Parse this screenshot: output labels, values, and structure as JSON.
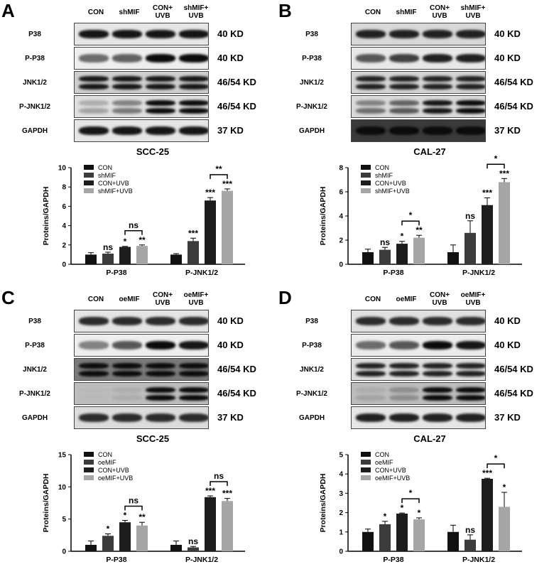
{
  "panels": [
    {
      "label": "A",
      "lanes": [
        "CON",
        "shMIF",
        "CON+\nUVB",
        "shMIF+\nUVB"
      ],
      "blots": [
        {
          "name": "P38",
          "kd": "40 KD",
          "bg": "#e6e6e6",
          "bands": [
            [
              0.9
            ],
            [
              0.9
            ],
            [
              0.9
            ],
            [
              0.9
            ]
          ]
        },
        {
          "name": "P-P38",
          "kd": "40 KD",
          "bg": "#eeeeee",
          "bands": [
            [
              0.5
            ],
            [
              0.55
            ],
            [
              0.95
            ],
            [
              0.95
            ]
          ]
        },
        {
          "name": "JNK1/2",
          "kd": "46/54 KD",
          "bg": "#cfcfcf",
          "bands": [
            [
              0.9,
              0.9
            ],
            [
              0.9,
              0.9
            ],
            [
              0.9,
              0.9
            ],
            [
              0.9,
              0.9
            ]
          ]
        },
        {
          "name": "P-JNK1/2",
          "kd": "46/54 KD",
          "bg": "#e0e0e0",
          "bands": [
            [
              0.2,
              0.25
            ],
            [
              0.4,
              0.45
            ],
            [
              0.95,
              0.95
            ],
            [
              0.95,
              0.95
            ]
          ]
        },
        {
          "name": "GAPDH",
          "kd": "37 KD",
          "bg": "#e6e6e6",
          "bands": [
            [
              0.9
            ],
            [
              0.9
            ],
            [
              0.9
            ],
            [
              0.9
            ]
          ]
        }
      ]
    },
    {
      "label": "B",
      "lanes": [
        "CON",
        "shMIF",
        "CON+\nUVB",
        "shMIF+\nUVB"
      ],
      "blots": [
        {
          "name": "P38",
          "kd": "40 KD",
          "bg": "#d8d8d8",
          "bands": [
            [
              0.85
            ],
            [
              0.85
            ],
            [
              0.85
            ],
            [
              0.85
            ]
          ]
        },
        {
          "name": "P-P38",
          "kd": "40 KD",
          "bg": "#e8e8e8",
          "bands": [
            [
              0.6
            ],
            [
              0.7
            ],
            [
              0.85
            ],
            [
              0.85
            ]
          ]
        },
        {
          "name": "JNK1/2",
          "kd": "46/54 KD",
          "bg": "#d4d4d4",
          "bands": [
            [
              0.85,
              0.85
            ],
            [
              0.85,
              0.85
            ],
            [
              0.85,
              0.85
            ],
            [
              0.85,
              0.85
            ]
          ]
        },
        {
          "name": "P-JNK1/2",
          "kd": "46/54 KD",
          "bg": "#dadada",
          "bands": [
            [
              0.4,
              0.5
            ],
            [
              0.55,
              0.6
            ],
            [
              0.9,
              0.9
            ],
            [
              0.95,
              0.95
            ]
          ]
        },
        {
          "name": "GAPDH",
          "kd": "37 KD",
          "bg": "#3a3a3a",
          "bands": [
            [
              0.95
            ],
            [
              0.95
            ],
            [
              0.95
            ],
            [
              0.95
            ]
          ]
        }
      ]
    },
    {
      "label": "C",
      "lanes": [
        "CON",
        "oeMIF",
        "CON+\nUVB",
        "oeMIF+\nUVB"
      ],
      "blots": [
        {
          "name": "P38",
          "kd": "40 KD",
          "bg": "#e4e4e4",
          "bands": [
            [
              0.8
            ],
            [
              0.8
            ],
            [
              0.8
            ],
            [
              0.8
            ]
          ]
        },
        {
          "name": "P-P38",
          "kd": "40 KD",
          "bg": "#eeeeee",
          "bands": [
            [
              0.4
            ],
            [
              0.6
            ],
            [
              0.95
            ],
            [
              0.9
            ]
          ]
        },
        {
          "name": "JNK1/2",
          "kd": "46/54 KD",
          "bg": "#7a7a7a",
          "bands": [
            [
              0.95,
              0.95
            ],
            [
              0.95,
              0.95
            ],
            [
              0.95,
              0.95
            ],
            [
              0.95,
              0.95
            ]
          ]
        },
        {
          "name": "P-JNK1/2",
          "kd": "46/54 KD",
          "bg": "#bdbdbd",
          "bands": [
            [
              0.15,
              0.15
            ],
            [
              0.2,
              0.2
            ],
            [
              0.95,
              0.95
            ],
            [
              0.95,
              0.95
            ]
          ]
        },
        {
          "name": "GAPDH",
          "kd": "37 KD",
          "bg": "#dcdcdc",
          "bands": [
            [
              0.8
            ],
            [
              0.8
            ],
            [
              0.8
            ],
            [
              0.8
            ]
          ]
        }
      ]
    },
    {
      "label": "D",
      "lanes": [
        "CON",
        "oeMIF",
        "CON+\nUVB",
        "oeMIF+\nUVB"
      ],
      "blots": [
        {
          "name": "P38",
          "kd": "40 KD",
          "bg": "#e0e0e0",
          "bands": [
            [
              0.8
            ],
            [
              0.8
            ],
            [
              0.8
            ],
            [
              0.8
            ]
          ]
        },
        {
          "name": "P-P38",
          "kd": "40 KD",
          "bg": "#ececec",
          "bands": [
            [
              0.5
            ],
            [
              0.6
            ],
            [
              0.95
            ],
            [
              0.9
            ]
          ]
        },
        {
          "name": "JNK1/2",
          "kd": "46/54 KD",
          "bg": "#dedede",
          "bands": [
            [
              0.85,
              0.85
            ],
            [
              0.85,
              0.85
            ],
            [
              0.85,
              0.85
            ],
            [
              0.85,
              0.85
            ]
          ]
        },
        {
          "name": "P-JNK1/2",
          "kd": "46/54 KD",
          "bg": "#bcbcbc",
          "bands": [
            [
              0.2,
              0.25
            ],
            [
              0.35,
              0.35
            ],
            [
              0.95,
              0.95
            ],
            [
              0.95,
              0.95
            ]
          ]
        },
        {
          "name": "GAPDH",
          "kd": "37 KD",
          "bg": "#e6e6e6",
          "bands": [
            [
              0.85
            ],
            [
              0.85
            ],
            [
              0.85
            ],
            [
              0.85
            ]
          ]
        }
      ]
    }
  ],
  "series_colors": [
    "#111111",
    "#3b3b3b",
    "#1d1d1d",
    "#a6a6a6"
  ],
  "chart_data": [
    {
      "type": "bar",
      "title": "SCC-25",
      "ylabel": "Proteins/GAPDH",
      "ylim": [
        0,
        10
      ],
      "yticks": [
        0,
        2,
        4,
        6,
        8,
        10
      ],
      "categories": [
        "P-P38",
        "P-JNK1/2"
      ],
      "legend_position": "top-left",
      "series": [
        {
          "name": "CON",
          "values": [
            1.0,
            1.0
          ],
          "errors": [
            0.2,
            0.1
          ],
          "sig": [
            "",
            ""
          ]
        },
        {
          "name": "shMIF",
          "values": [
            1.1,
            2.4
          ],
          "errors": [
            0.15,
            0.3
          ],
          "sig": [
            "ns",
            "***"
          ]
        },
        {
          "name": "CON+UVB",
          "values": [
            1.8,
            6.6
          ],
          "errors": [
            0.05,
            0.3
          ],
          "sig": [
            "*",
            "***"
          ]
        },
        {
          "name": "shMIF+UVB",
          "values": [
            1.9,
            7.6
          ],
          "errors": [
            0.1,
            0.2
          ],
          "sig": [
            "**",
            "***"
          ]
        }
      ],
      "brackets": [
        {
          "category": 0,
          "label": "ns"
        },
        {
          "category": 1,
          "label": "**"
        }
      ]
    },
    {
      "type": "bar",
      "title": "CAL-27",
      "ylabel": "Proteins/GAPDH",
      "ylim": [
        0,
        8
      ],
      "yticks": [
        0,
        2,
        4,
        6,
        8
      ],
      "categories": [
        "P-P38",
        "P-JNK1/2"
      ],
      "legend_position": "top-left",
      "series": [
        {
          "name": "CON",
          "values": [
            1.0,
            1.0
          ],
          "errors": [
            0.25,
            0.6
          ],
          "sig": [
            "",
            ""
          ]
        },
        {
          "name": "shMIF",
          "values": [
            1.2,
            2.6
          ],
          "errors": [
            0.2,
            1.0
          ],
          "sig": [
            "ns",
            "ns"
          ]
        },
        {
          "name": "CON+UVB",
          "values": [
            1.7,
            4.9
          ],
          "errors": [
            0.2,
            0.6
          ],
          "sig": [
            "*",
            "***"
          ]
        },
        {
          "name": "shMIF+UVB",
          "values": [
            2.2,
            6.8
          ],
          "errors": [
            0.2,
            0.3
          ],
          "sig": [
            "**",
            "***"
          ]
        }
      ],
      "brackets": [
        {
          "category": 0,
          "label": "*"
        },
        {
          "category": 1,
          "label": "*"
        }
      ]
    },
    {
      "type": "bar",
      "title": "SCC-25",
      "ylabel": "Proteins/GAPDH",
      "ylim": [
        0,
        15
      ],
      "yticks": [
        0,
        5,
        10,
        15
      ],
      "categories": [
        "P-P38",
        "P-JNK1/2"
      ],
      "legend_position": "top-left",
      "series": [
        {
          "name": "CON",
          "values": [
            1.0,
            1.0
          ],
          "errors": [
            0.6,
            0.6
          ],
          "sig": [
            "",
            ""
          ]
        },
        {
          "name": "oeMIF",
          "values": [
            2.4,
            0.6
          ],
          "errors": [
            0.3,
            0.15
          ],
          "sig": [
            "*",
            "ns"
          ]
        },
        {
          "name": "CON+UVB",
          "values": [
            4.5,
            8.4
          ],
          "errors": [
            0.3,
            0.2
          ],
          "sig": [
            "*",
            "***"
          ]
        },
        {
          "name": "oeMIF+UVB",
          "values": [
            4.0,
            7.8
          ],
          "errors": [
            0.5,
            0.4
          ],
          "sig": [
            "**",
            "***"
          ]
        }
      ],
      "brackets": [
        {
          "category": 0,
          "label": "ns"
        },
        {
          "category": 1,
          "label": "ns"
        }
      ]
    },
    {
      "type": "bar",
      "title": "CAL-27",
      "ylabel": "Proteins/GAPDH",
      "ylim": [
        0,
        5
      ],
      "yticks": [
        0,
        1,
        2,
        3,
        4,
        5
      ],
      "categories": [
        "P-P38",
        "P-JNK1/2"
      ],
      "legend_position": "top-left",
      "series": [
        {
          "name": "CON",
          "values": [
            1.0,
            1.0
          ],
          "errors": [
            0.15,
            0.35
          ],
          "sig": [
            "",
            ""
          ]
        },
        {
          "name": "oeMIF",
          "values": [
            1.4,
            0.6
          ],
          "errors": [
            0.15,
            0.25
          ],
          "sig": [
            "*",
            "ns"
          ]
        },
        {
          "name": "CON+UVB",
          "values": [
            1.95,
            3.75
          ],
          "errors": [
            0.03,
            0.03
          ],
          "sig": [
            "*",
            "***"
          ]
        },
        {
          "name": "oeMIF+UVB",
          "values": [
            1.65,
            2.3
          ],
          "errors": [
            0.08,
            0.75
          ],
          "sig": [
            "*",
            "*"
          ]
        }
      ],
      "brackets": [
        {
          "category": 0,
          "label": "*"
        },
        {
          "category": 1,
          "label": "*"
        }
      ]
    }
  ]
}
